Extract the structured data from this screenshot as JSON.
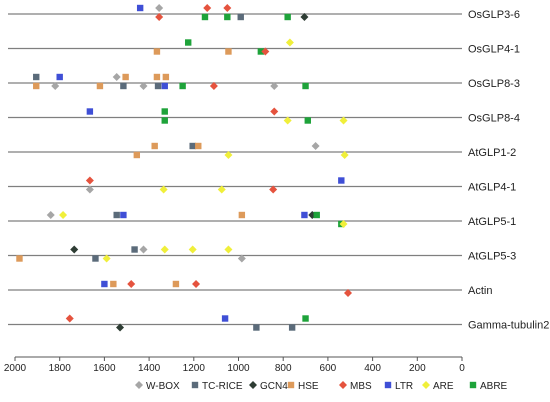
{
  "chart_data": {
    "type": "scatter",
    "title": "",
    "xlabel": "",
    "ylabel": "",
    "xlim": [
      2000,
      0
    ],
    "x_ticks": [
      "2000",
      "1800",
      "1600",
      "1400",
      "1200",
      "1000",
      "800",
      "600",
      "400",
      "200",
      "0"
    ],
    "genes": [
      "OsGLP3-6",
      "OsGLP4-1",
      "OsGLP8-3",
      "OsGLP8-4",
      "AtGLP1-2",
      "AtGLP4-1",
      "AtGLP5-1",
      "AtGLP5-3",
      "Actin",
      "Gamma-tubulin2"
    ],
    "element_types": [
      {
        "name": "W-BOX",
        "color": "#a6a6a6",
        "shape": "diamond"
      },
      {
        "name": "TC-RICE",
        "color": "#5b6b7a",
        "shape": "square"
      },
      {
        "name": "GCN4",
        "color": "#2e3d34",
        "shape": "diamond"
      },
      {
        "name": "HSE",
        "color": "#dd9a5a",
        "shape": "square"
      },
      {
        "name": "MBS",
        "color": "#e5533e",
        "shape": "diamond"
      },
      {
        "name": "LTR",
        "color": "#3f4fd6",
        "shape": "square"
      },
      {
        "name": "ARE",
        "color": "#f0ef3a",
        "shape": "diamond"
      },
      {
        "name": "ABRE",
        "color": "#1ea33a",
        "shape": "square"
      }
    ],
    "legend_position": "bottom",
    "grid": false,
    "series": [
      {
        "gene": "OsGLP3-6",
        "sites": [
          {
            "x": 1440,
            "type": "LTR",
            "level": "up"
          },
          {
            "x": 1355,
            "type": "W-BOX",
            "level": "up"
          },
          {
            "x": 1355,
            "type": "MBS",
            "level": "down"
          },
          {
            "x": 1140,
            "type": "MBS",
            "level": "up"
          },
          {
            "x": 1050,
            "type": "MBS",
            "level": "up"
          },
          {
            "x": 1150,
            "type": "ABRE",
            "level": "down"
          },
          {
            "x": 1050,
            "type": "ABRE",
            "level": "down"
          },
          {
            "x": 990,
            "type": "TC-RICE",
            "level": "down"
          },
          {
            "x": 780,
            "type": "ABRE",
            "level": "down"
          },
          {
            "x": 705,
            "type": "GCN4",
            "level": "down"
          }
        ]
      },
      {
        "gene": "OsGLP4-1",
        "sites": [
          {
            "x": 1225,
            "type": "ABRE",
            "level": "up"
          },
          {
            "x": 1365,
            "type": "HSE",
            "level": "down"
          },
          {
            "x": 1045,
            "type": "HSE",
            "level": "down"
          },
          {
            "x": 900,
            "type": "ABRE",
            "level": "down"
          },
          {
            "x": 880,
            "type": "MBS",
            "level": "down"
          },
          {
            "x": 770,
            "type": "ARE",
            "level": "up"
          }
        ]
      },
      {
        "gene": "OsGLP8-3",
        "sites": [
          {
            "x": 1905,
            "type": "TC-RICE",
            "level": "up"
          },
          {
            "x": 1800,
            "type": "LTR",
            "level": "up"
          },
          {
            "x": 1545,
            "type": "W-BOX",
            "level": "up"
          },
          {
            "x": 1505,
            "type": "HSE",
            "level": "up"
          },
          {
            "x": 1365,
            "type": "HSE",
            "level": "up"
          },
          {
            "x": 1325,
            "type": "HSE",
            "level": "up"
          },
          {
            "x": 1905,
            "type": "HSE",
            "level": "down"
          },
          {
            "x": 1820,
            "type": "W-BOX",
            "level": "down"
          },
          {
            "x": 1620,
            "type": "HSE",
            "level": "down"
          },
          {
            "x": 1515,
            "type": "TC-RICE",
            "level": "down"
          },
          {
            "x": 1425,
            "type": "W-BOX",
            "level": "down"
          },
          {
            "x": 1360,
            "type": "TC-RICE",
            "level": "down"
          },
          {
            "x": 1330,
            "type": "LTR",
            "level": "down"
          },
          {
            "x": 1250,
            "type": "ABRE",
            "level": "down"
          },
          {
            "x": 1110,
            "type": "MBS",
            "level": "down"
          },
          {
            "x": 840,
            "type": "W-BOX",
            "level": "down"
          },
          {
            "x": 700,
            "type": "ABRE",
            "level": "down"
          }
        ]
      },
      {
        "gene": "OsGLP8-4",
        "sites": [
          {
            "x": 1665,
            "type": "LTR",
            "level": "up"
          },
          {
            "x": 1330,
            "type": "ABRE",
            "level": "up"
          },
          {
            "x": 1330,
            "type": "ABRE",
            "level": "down"
          },
          {
            "x": 840,
            "type": "MBS",
            "level": "up"
          },
          {
            "x": 780,
            "type": "ARE",
            "level": "down"
          },
          {
            "x": 690,
            "type": "ABRE",
            "level": "down"
          },
          {
            "x": 530,
            "type": "ARE",
            "level": "down"
          }
        ]
      },
      {
        "gene": "AtGLP1-2",
        "sites": [
          {
            "x": 1375,
            "type": "HSE",
            "level": "up"
          },
          {
            "x": 1455,
            "type": "HSE",
            "level": "down"
          },
          {
            "x": 1205,
            "type": "TC-RICE",
            "level": "up"
          },
          {
            "x": 1180,
            "type": "HSE",
            "level": "up"
          },
          {
            "x": 1045,
            "type": "ARE",
            "level": "down"
          },
          {
            "x": 655,
            "type": "W-BOX",
            "level": "up"
          },
          {
            "x": 525,
            "type": "ARE",
            "level": "down"
          }
        ]
      },
      {
        "gene": "AtGLP4-1",
        "sites": [
          {
            "x": 1665,
            "type": "MBS",
            "level": "up"
          },
          {
            "x": 1665,
            "type": "W-BOX",
            "level": "down"
          },
          {
            "x": 1335,
            "type": "ARE",
            "level": "down"
          },
          {
            "x": 1075,
            "type": "ARE",
            "level": "down"
          },
          {
            "x": 845,
            "type": "MBS",
            "level": "down"
          },
          {
            "x": 540,
            "type": "LTR",
            "level": "up"
          }
        ]
      },
      {
        "gene": "AtGLP5-1",
        "sites": [
          {
            "x": 1840,
            "type": "W-BOX",
            "level": "up"
          },
          {
            "x": 1785,
            "type": "ARE",
            "level": "up"
          },
          {
            "x": 1545,
            "type": "TC-RICE",
            "level": "up"
          },
          {
            "x": 1515,
            "type": "LTR",
            "level": "up"
          },
          {
            "x": 985,
            "type": "HSE",
            "level": "up"
          },
          {
            "x": 705,
            "type": "LTR",
            "level": "up"
          },
          {
            "x": 670,
            "type": "GCN4",
            "level": "up"
          },
          {
            "x": 650,
            "type": "ABRE",
            "level": "up"
          },
          {
            "x": 540,
            "type": "ABRE",
            "level": "down"
          },
          {
            "x": 530,
            "type": "ARE",
            "level": "down"
          }
        ]
      },
      {
        "gene": "AtGLP5-3",
        "sites": [
          {
            "x": 1735,
            "type": "GCN4",
            "level": "up"
          },
          {
            "x": 1465,
            "type": "TC-RICE",
            "level": "up"
          },
          {
            "x": 1425,
            "type": "W-BOX",
            "level": "up"
          },
          {
            "x": 1330,
            "type": "ARE",
            "level": "up"
          },
          {
            "x": 1205,
            "type": "ARE",
            "level": "up"
          },
          {
            "x": 1045,
            "type": "ARE",
            "level": "up"
          },
          {
            "x": 1980,
            "type": "HSE",
            "level": "down"
          },
          {
            "x": 1640,
            "type": "TC-RICE",
            "level": "down"
          },
          {
            "x": 1590,
            "type": "ARE",
            "level": "down"
          },
          {
            "x": 985,
            "type": "W-BOX",
            "level": "down"
          }
        ]
      },
      {
        "gene": "Actin",
        "sites": [
          {
            "x": 1600,
            "type": "LTR",
            "level": "up"
          },
          {
            "x": 1560,
            "type": "HSE",
            "level": "up"
          },
          {
            "x": 1480,
            "type": "MBS",
            "level": "up"
          },
          {
            "x": 1280,
            "type": "HSE",
            "level": "up"
          },
          {
            "x": 1190,
            "type": "MBS",
            "level": "up"
          },
          {
            "x": 510,
            "type": "MBS",
            "level": "down"
          }
        ]
      },
      {
        "gene": "Gamma-tubulin2",
        "sites": [
          {
            "x": 1755,
            "type": "MBS",
            "level": "up"
          },
          {
            "x": 1530,
            "type": "GCN4",
            "level": "down"
          },
          {
            "x": 1060,
            "type": "LTR",
            "level": "up"
          },
          {
            "x": 920,
            "type": "TC-RICE",
            "level": "down"
          },
          {
            "x": 760,
            "type": "TC-RICE",
            "level": "down"
          },
          {
            "x": 700,
            "type": "ABRE",
            "level": "up"
          }
        ]
      }
    ]
  }
}
